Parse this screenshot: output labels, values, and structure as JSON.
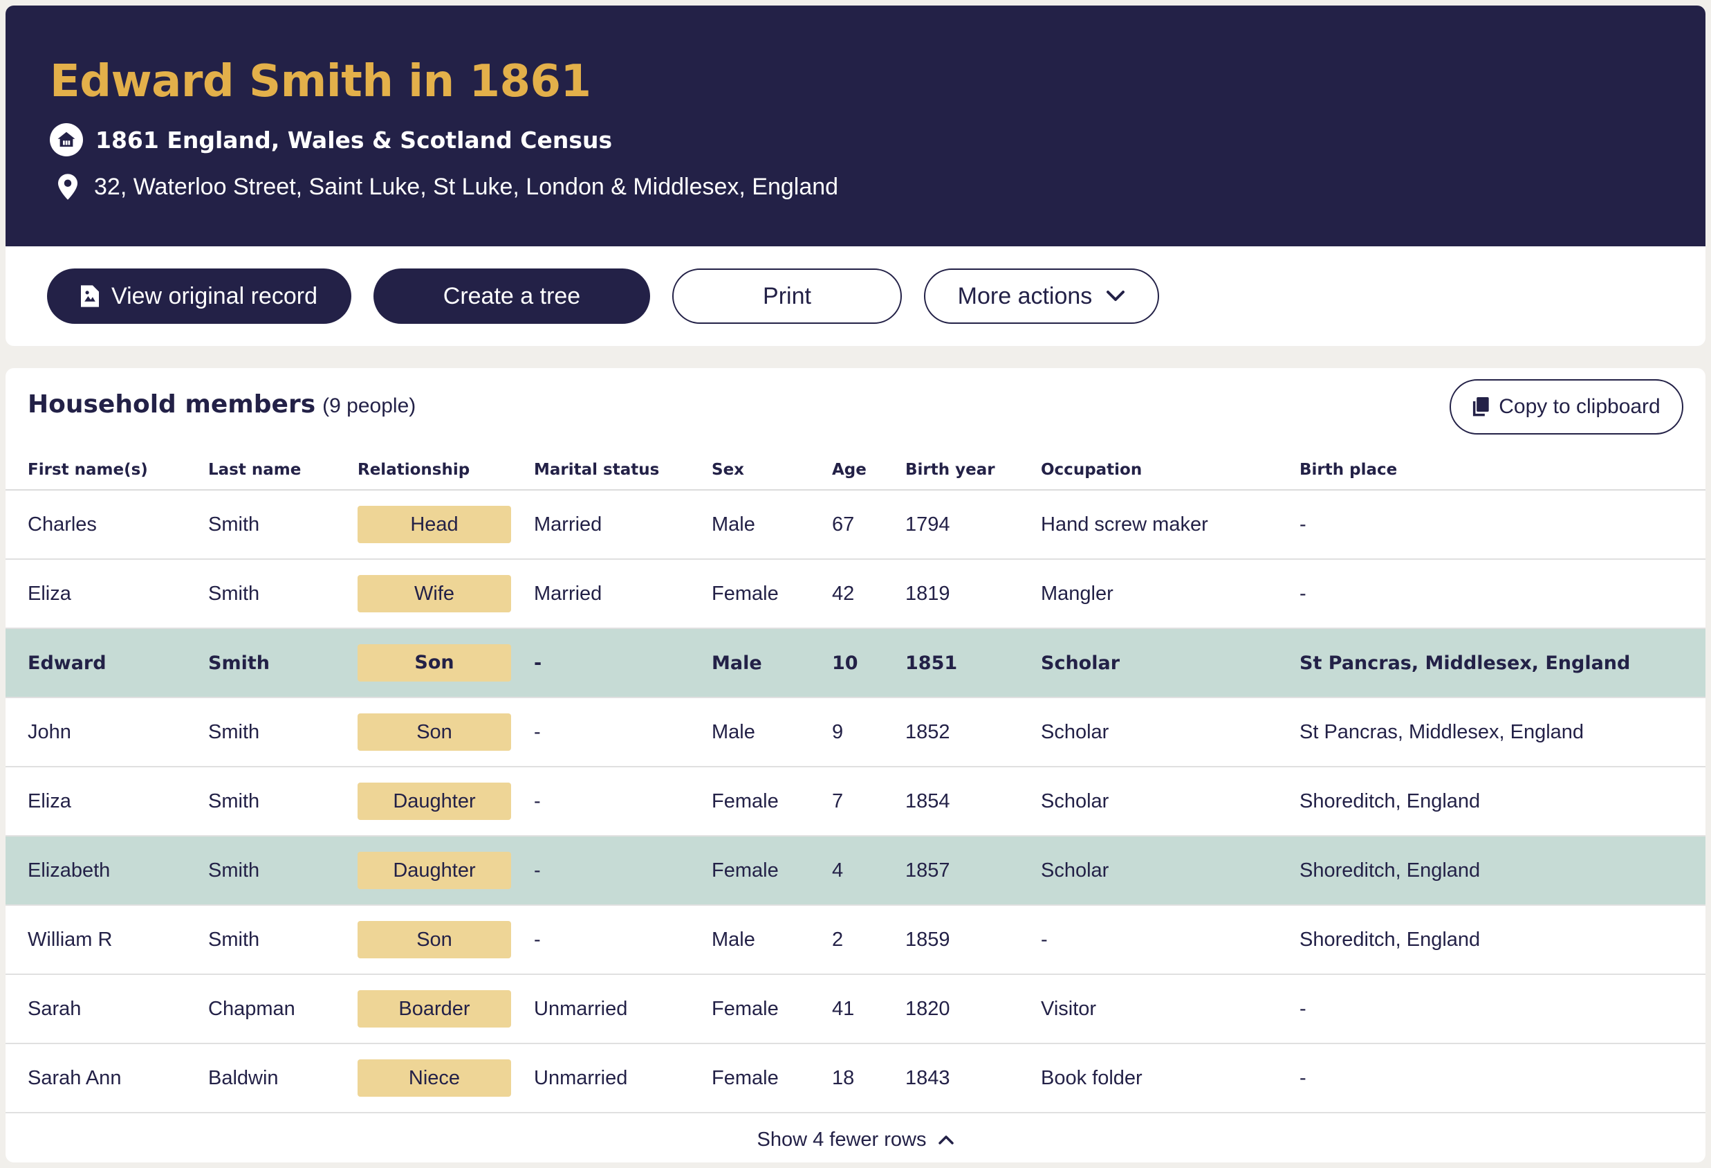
{
  "header": {
    "title": "Edward Smith in 1861",
    "collection_icon": "census-house-icon",
    "collection": "1861 England, Wales & Scotland Census",
    "location_icon": "map-pin-icon",
    "address": "32, Waterloo Street, Saint Luke, St Luke, London & Middlesex, England",
    "background_color": "#232147",
    "title_color": "#e3b04a"
  },
  "actions": {
    "view_original": "View original record",
    "view_original_icon": "document-image-icon",
    "create_tree": "Create a tree",
    "print": "Print",
    "more_actions": "More actions",
    "more_actions_icon": "chevron-down-icon"
  },
  "household": {
    "title": "Household members",
    "count": "(9 people)",
    "copy_label": "Copy to clipboard",
    "copy_icon": "copy-icon",
    "columns": [
      "First name(s)",
      "Last name",
      "Relationship",
      "Marital status",
      "Sex",
      "Age",
      "Birth year",
      "Occupation",
      "Birth place"
    ],
    "rows": [
      [
        "Charles",
        "Smith",
        "Head",
        "Married",
        "Male",
        "67",
        "1794",
        "Hand screw maker",
        "-"
      ],
      [
        "Eliza",
        "Smith",
        "Wife",
        "Married",
        "Female",
        "42",
        "1819",
        "Mangler",
        "-"
      ],
      [
        "Edward",
        "Smith",
        "Son",
        "-",
        "Male",
        "10",
        "1851",
        "Scholar",
        "St Pancras, Middlesex, England"
      ],
      [
        "John",
        "Smith",
        "Son",
        "-",
        "Male",
        "9",
        "1852",
        "Scholar",
        "St Pancras, Middlesex, England"
      ],
      [
        "Eliza",
        "Smith",
        "Daughter",
        "-",
        "Female",
        "7",
        "1854",
        "Scholar",
        "Shoreditch, England"
      ],
      [
        "Elizabeth",
        "Smith",
        "Daughter",
        "-",
        "Female",
        "4",
        "1857",
        "Scholar",
        "Shoreditch, England"
      ],
      [
        "William R",
        "Smith",
        "Son",
        "-",
        "Male",
        "2",
        "1859",
        "-",
        "Shoreditch, England"
      ],
      [
        "Sarah",
        "Chapman",
        "Boarder",
        "Unmarried",
        "Female",
        "41",
        "1820",
        "Visitor",
        "-"
      ],
      [
        "Sarah Ann",
        "Baldwin",
        "Niece",
        "Unmarried",
        "Female",
        "18",
        "1843",
        "Book folder",
        "-"
      ]
    ],
    "highlight_color": "#c6dbd5",
    "relationship_badge_color": "#eed596",
    "show_fewer": "Show 4 fewer rows",
    "show_fewer_icon": "chevron-up-icon"
  }
}
